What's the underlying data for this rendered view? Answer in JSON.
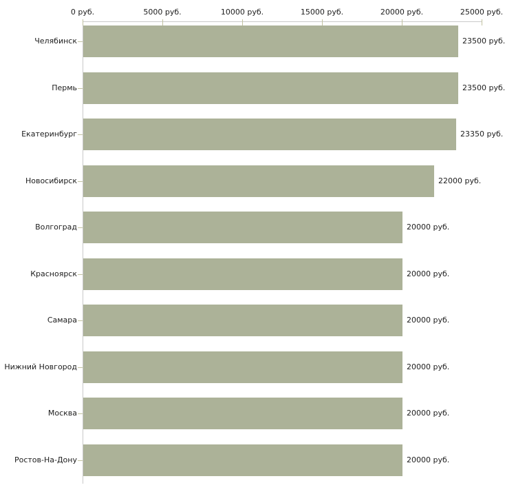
{
  "chart_data": {
    "type": "bar",
    "orientation": "horizontal",
    "categories": [
      "Челябинск",
      "Пермь",
      "Екатеринбург",
      "Новосибирск",
      "Волгоград",
      "Красноярск",
      "Самара",
      "Нижний Новгород",
      "Москва",
      "Ростов-На-Дону"
    ],
    "values": [
      23500,
      23500,
      23350,
      22000,
      20000,
      20000,
      20000,
      20000,
      20000,
      20000
    ],
    "value_labels": [
      "23500 руб.",
      "23500 руб.",
      "23350 руб.",
      "22000 руб.",
      "20000 руб.",
      "20000 руб.",
      "20000 руб.",
      "20000 руб.",
      "20000 руб.",
      "20000 руб."
    ],
    "unit": "руб.",
    "x_axis": {
      "position": "top",
      "range": [
        0,
        25000
      ],
      "ticks": [
        0,
        5000,
        10000,
        15000,
        20000,
        25000
      ],
      "tick_labels": [
        "0 руб.",
        "5000 руб.",
        "10000 руб.",
        "15000 руб.",
        "20000 руб.",
        "25000 руб."
      ]
    },
    "xlabel": "",
    "ylabel": "",
    "title": "",
    "grid": false,
    "legend": false,
    "colors": {
      "bar": "#acb298",
      "axis_line": "#c9c9c9",
      "tick_mark": "#c2c2a0",
      "text": "#1c1c1c"
    }
  }
}
